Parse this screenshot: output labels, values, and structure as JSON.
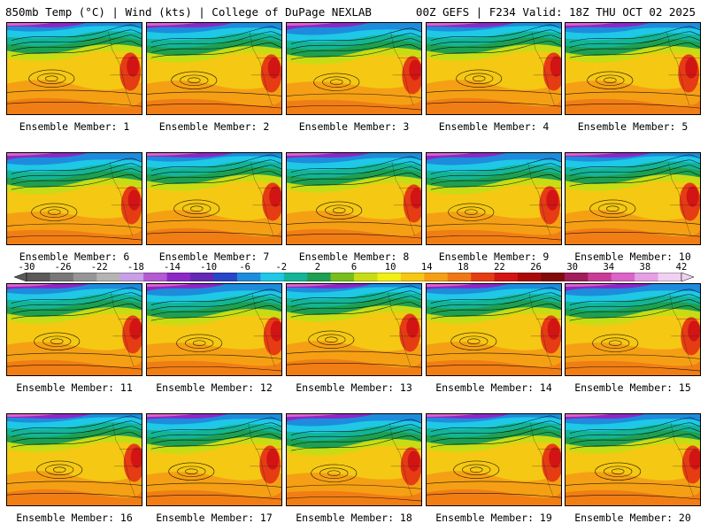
{
  "header": {
    "left_title": "850mb Temp (°C) | Wind (kts) | College of DuPage NEXLAB",
    "right_title": "00Z GEFS | F234 Valid: 18Z THU OCT 02 2025"
  },
  "colorbar": {
    "ticks": [
      "-30",
      "-26",
      "-22",
      "-18",
      "-14",
      "-10",
      "-6",
      "-2",
      "2",
      "6",
      "10",
      "14",
      "18",
      "22",
      "26",
      "30",
      "34",
      "38",
      "42"
    ],
    "colors": [
      "#5a5a5a",
      "#787878",
      "#969696",
      "#b4b4b4",
      "#c8a0e6",
      "#b45ad2",
      "#8c28c8",
      "#6428b4",
      "#2846c8",
      "#1e8cdc",
      "#1ec8e6",
      "#14b496",
      "#1ea050",
      "#78be1e",
      "#c8dc14",
      "#f0f014",
      "#f5c814",
      "#f5a014",
      "#f07814",
      "#e63c14",
      "#d21414",
      "#aa0a0a",
      "#820a0a",
      "#a01e5a",
      "#c83c96",
      "#dc64c8",
      "#e6a0e6",
      "#f0d2f0"
    ],
    "left_arrow_color": "#5a5a5a",
    "right_arrow_color": "#f0d2f0"
  },
  "members": [
    {
      "label": "Ensemble Member: 1"
    },
    {
      "label": "Ensemble Member: 2"
    },
    {
      "label": "Ensemble Member: 3"
    },
    {
      "label": "Ensemble Member: 4"
    },
    {
      "label": "Ensemble Member: 5"
    },
    {
      "label": "Ensemble Member: 6"
    },
    {
      "label": "Ensemble Member: 7"
    },
    {
      "label": "Ensemble Member: 8"
    },
    {
      "label": "Ensemble Member: 9"
    },
    {
      "label": "Ensemble Member: 10"
    },
    {
      "label": "Ensemble Member: 11"
    },
    {
      "label": "Ensemble Member: 12"
    },
    {
      "label": "Ensemble Member: 13"
    },
    {
      "label": "Ensemble Member: 14"
    },
    {
      "label": "Ensemble Member: 15"
    },
    {
      "label": "Ensemble Member: 16"
    },
    {
      "label": "Ensemble Member: 17"
    },
    {
      "label": "Ensemble Member: 18"
    },
    {
      "label": "Ensemble Member: 19"
    },
    {
      "label": "Ensemble Member: 20"
    }
  ]
}
